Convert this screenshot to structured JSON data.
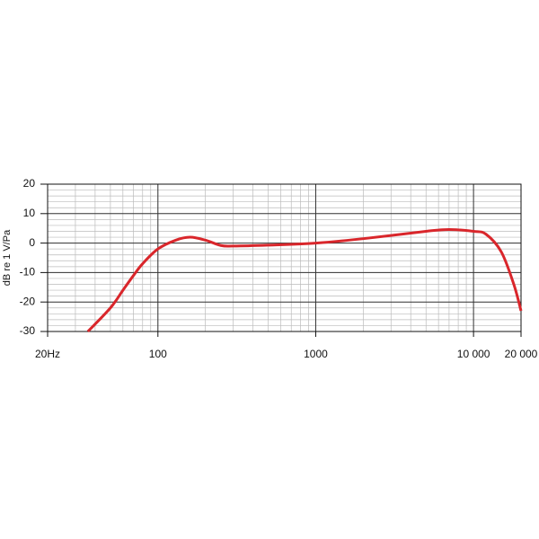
{
  "chart_data": {
    "type": "line",
    "y_label": "dB re 1 V/Pa",
    "log_x": true,
    "grid": true,
    "xlim": [
      20,
      20000
    ],
    "ylim": [
      -30,
      20
    ],
    "xticks": [
      {
        "value": 20,
        "label": "20Hz"
      },
      100,
      1000,
      {
        "value": 10000,
        "label": "10 000"
      },
      {
        "value": 20000,
        "label": "20 000"
      }
    ],
    "yticks": [
      20,
      10,
      0,
      -10,
      -20,
      -30
    ],
    "x": [
      36,
      50,
      60,
      70,
      80,
      100,
      130,
      160,
      200,
      250,
      300,
      500,
      1000,
      2000,
      5000,
      7000,
      10000,
      12000,
      15000,
      18000,
      20000
    ],
    "series": [
      {
        "color": "#d9262b",
        "values": [
          -30,
          -22,
          -16,
          -11,
          -7,
          -2,
          1,
          2,
          1,
          -0.8,
          -1,
          -0.7,
          0,
          1.5,
          4,
          4.6,
          4,
          3,
          -3,
          -14,
          -23
        ]
      }
    ]
  }
}
